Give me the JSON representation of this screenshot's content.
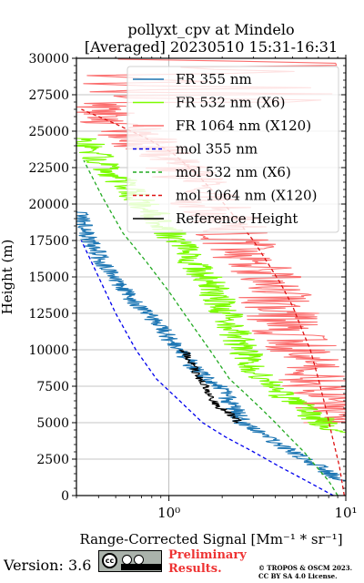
{
  "chart_data": {
    "type": "line",
    "title": "pollyxt_cpv at Mindelo",
    "subtitle": "[Averaged] 20230510 15:31-16:31",
    "xlabel": "Range-Corrected Signal [Mm⁻¹ * sr⁻¹]",
    "ylabel": "Height (m)",
    "xscale": "log",
    "xlim": [
      0.3,
      10
    ],
    "ylim": [
      0,
      30000
    ],
    "xticks": [
      {
        "value": 1,
        "label": "10⁰"
      },
      {
        "value": 10,
        "label": "10¹"
      }
    ],
    "yticks": [
      0,
      2500,
      5000,
      7500,
      10000,
      12500,
      15000,
      17500,
      20000,
      22500,
      25000,
      27500,
      30000
    ],
    "grid": true,
    "legend_position": "top-right",
    "series": [
      {
        "name": "FR 355 nm",
        "color": "#1f77b4",
        "style": "solid",
        "x": [
          9.5,
          7.0,
          5.0,
          3.8,
          3.0,
          2.6,
          2.4,
          2.2,
          2.0,
          1.7,
          1.4,
          1.3,
          1.2,
          1.05,
          0.9,
          0.75,
          0.62,
          0.52,
          0.45,
          0.4,
          0.36,
          0.33,
          0.31
        ],
        "y": [
          1000,
          2000,
          3000,
          3800,
          4600,
          5000,
          5800,
          6500,
          7300,
          8000,
          8600,
          9200,
          9800,
          10500,
          11500,
          12500,
          13500,
          14500,
          15500,
          16500,
          17500,
          18500,
          19500
        ],
        "noise": 0.12
      },
      {
        "name": "FR 532 nm (X6)",
        "color": "#7cfc00",
        "style": "solid",
        "x": [
          10.0,
          9.0,
          8.0,
          6.5,
          5.0,
          4.0,
          3.3,
          2.9,
          2.7,
          2.5,
          2.3,
          2.1,
          1.9,
          1.7,
          1.5,
          1.3,
          1.1,
          0.95,
          0.8,
          0.65,
          0.55,
          0.45,
          0.38,
          0.33
        ],
        "y": [
          4300,
          4500,
          4800,
          5500,
          6500,
          7300,
          8200,
          9000,
          9800,
          10500,
          11500,
          12500,
          13500,
          14500,
          15500,
          16500,
          17500,
          18500,
          19500,
          20500,
          21500,
          22500,
          23500,
          24500
        ],
        "noise": 0.22
      },
      {
        "name": "FR 1064 nm (X120)",
        "color": "#fb6e6e",
        "style": "solid",
        "x": [
          9.5,
          8.5,
          7.5,
          7.0,
          6.5,
          6.0,
          5.5,
          5.0,
          4.6,
          4.2,
          3.8,
          3.4,
          3.0,
          2.6,
          2.3,
          2.0,
          1.7,
          1.4,
          1.2,
          1.0,
          0.8,
          0.6,
          0.45,
          0.35
        ],
        "y": [
          5000,
          5800,
          6500,
          7300,
          8000,
          9000,
          10000,
          11000,
          12000,
          13000,
          14000,
          15000,
          16000,
          17000,
          18000,
          19000,
          20000,
          21000,
          22000,
          23000,
          24000,
          25000,
          26000,
          27000
        ],
        "noise": 0.5
      },
      {
        "name": "mol 355 nm",
        "color": "#0000ee",
        "style": "dashed",
        "x": [
          8.5,
          6.0,
          4.2,
          3.0,
          2.1,
          1.55,
          1.15,
          0.85,
          0.65,
          0.5,
          0.4,
          0.32
        ],
        "y": [
          0,
          1000,
          2000,
          3000,
          4000,
          5000,
          6500,
          8000,
          10000,
          12500,
          15000,
          17500
        ]
      },
      {
        "name": "mol 532 nm (X6)",
        "color": "#22aa22",
        "style": "dashed",
        "x": [
          9.0,
          8.0,
          6.8,
          5.8,
          4.8,
          4.0,
          3.3,
          2.7,
          2.2,
          1.7,
          1.3,
          1.0,
          0.75,
          0.55,
          0.42,
          0.33
        ],
        "y": [
          0,
          1000,
          2000,
          3000,
          4000,
          5000,
          6000,
          7000,
          8000,
          10000,
          12000,
          14000,
          16000,
          18000,
          20500,
          23000
        ]
      },
      {
        "name": "mol 1064 nm (X120)",
        "color": "#dd1111",
        "style": "dashed",
        "x": [
          9.8,
          9.2,
          8.4,
          7.7,
          7.0,
          6.3,
          5.6,
          5.0,
          4.3,
          3.6,
          3.0,
          2.4,
          1.9,
          1.45,
          1.05,
          0.75,
          0.5,
          0.32
        ],
        "y": [
          0,
          2000,
          4000,
          6000,
          8000,
          10000,
          11500,
          13000,
          14500,
          16000,
          17500,
          19000,
          20500,
          22000,
          23500,
          24500,
          25500,
          26500
        ]
      },
      {
        "name": "Reference Height",
        "color": "#000000",
        "style": "solid",
        "x": [
          2.5,
          2.2,
          1.9,
          1.75,
          1.65,
          1.5,
          1.4,
          1.35,
          1.3,
          1.25,
          1.2
        ],
        "y": [
          5000,
          5600,
          6100,
          6700,
          7300,
          8000,
          8600,
          9000,
          9400,
          9700,
          10000
        ],
        "noise": 0.06
      }
    ],
    "annotations": [
      "Version: 3.6",
      "Preliminary",
      "Results.",
      "© TROPOS & OSCM 2023.",
      "CC BY SA 4.0 License."
    ]
  },
  "footer": {
    "version": "Version: 3.6",
    "cc_label": "cc",
    "prelim_line1": "Preliminary",
    "prelim_line2": "Results.",
    "license_line1": "© TROPOS & OSCM 2023.",
    "license_line2": "CC BY SA 4.0 License."
  }
}
